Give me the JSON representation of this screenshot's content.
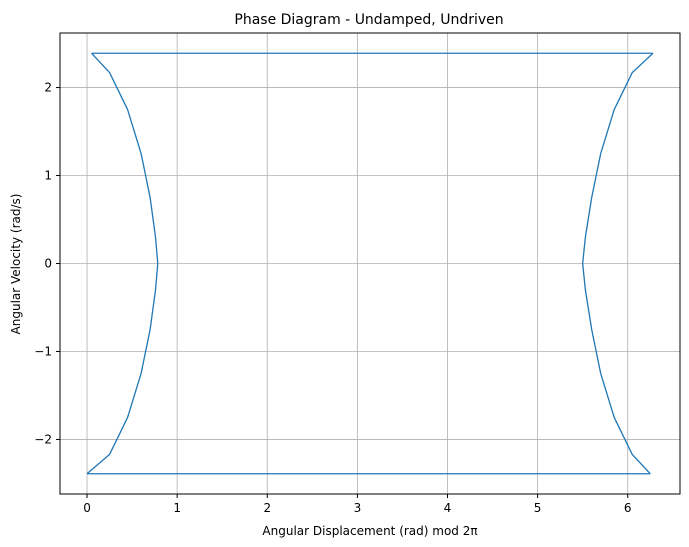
{
  "chart_data": {
    "type": "line",
    "title": "Phase Diagram - Undamped, Undriven",
    "xlabel": "Angular Displacement (rad) mod 2π",
    "ylabel": "Angular Velocity (rad/s)",
    "xlim": [
      -0.3,
      6.58
    ],
    "ylim": [
      -2.62,
      2.62
    ],
    "xticks": [
      0,
      1,
      2,
      3,
      4,
      5,
      6
    ],
    "yticks": [
      -2,
      -1,
      0,
      1,
      2
    ],
    "xtick_labels": [
      "0",
      "1",
      "2",
      "3",
      "4",
      "5",
      "6"
    ],
    "ytick_labels": [
      "−2",
      "−1",
      "0",
      "1",
      "2"
    ],
    "grid": true,
    "series": [
      {
        "color": "#1f77b4",
        "segments": [
          {
            "x": [
              0.05,
              0.25,
              0.45,
              0.6,
              0.7,
              0.76,
              0.785,
              0.76,
              0.7,
              0.6,
              0.45,
              0.25,
              0.0
            ],
            "y": [
              2.39,
              2.17,
              1.75,
              1.25,
              0.75,
              0.3,
              0.0,
              -0.3,
              -0.75,
              -1.25,
              -1.75,
              -2.17,
              -2.39
            ]
          },
          {
            "x": [
              0.0,
              6.25
            ],
            "y": [
              -2.39,
              -2.39
            ]
          },
          {
            "x": [
              6.25,
              6.05,
              5.85,
              5.7,
              5.6,
              5.53,
              5.5,
              5.53,
              5.6,
              5.7,
              5.85,
              6.05,
              6.28
            ],
            "y": [
              -2.39,
              -2.17,
              -1.75,
              -1.25,
              -0.75,
              -0.3,
              0.0,
              0.3,
              0.75,
              1.25,
              1.75,
              2.17,
              2.39
            ]
          },
          {
            "x": [
              6.28,
              0.05
            ],
            "y": [
              2.39,
              2.39
            ]
          }
        ]
      }
    ]
  }
}
